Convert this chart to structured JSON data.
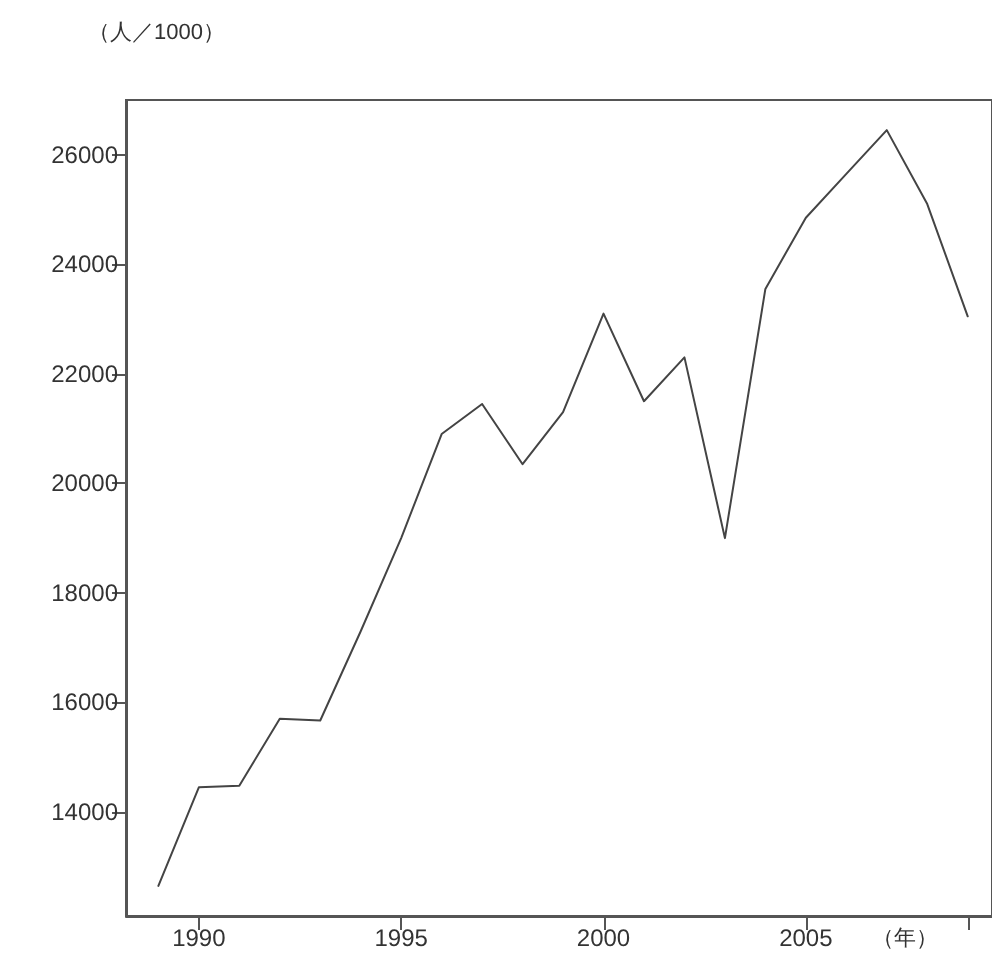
{
  "chart_data": {
    "type": "line",
    "ylabel": "（人／1000）",
    "xlabel": "（年）",
    "x": [
      1989,
      1990,
      1991,
      1992,
      1993,
      1994,
      1995,
      1996,
      1997,
      1998,
      1999,
      2000,
      2001,
      2002,
      2003,
      2004,
      2005,
      2006,
      2007,
      2008,
      2009
    ],
    "values": [
      12650,
      14450,
      14480,
      15700,
      15670,
      17300,
      19000,
      20900,
      21450,
      20350,
      21300,
      23100,
      21500,
      22300,
      19000,
      23550,
      24850,
      25650,
      26450,
      25100,
      23050
    ],
    "color": "#444444",
    "xlim": [
      1988.2,
      2009.6
    ],
    "ylim": [
      12100,
      27000
    ],
    "xticks": [
      1990,
      1995,
      2000,
      2005,
      {
        "value": 2009,
        "label": null
      }
    ],
    "yticks": [
      14000,
      16000,
      18000,
      20000,
      22000,
      24000,
      26000
    ],
    "marker": "none",
    "line_style": "solid"
  }
}
